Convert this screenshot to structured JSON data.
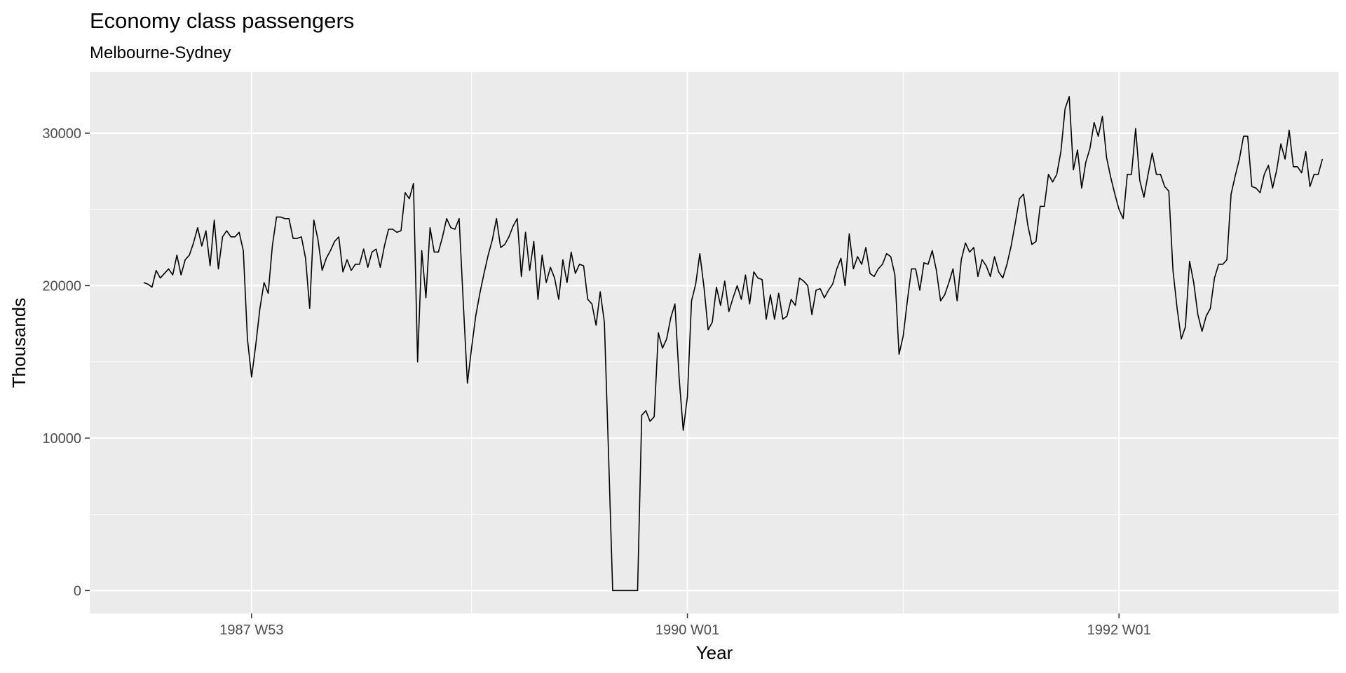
{
  "chart_data": {
    "type": "line",
    "title": "Economy class passengers",
    "subtitle": "Melbourne-Sydney",
    "xlabel": "Year",
    "ylabel": "Thousands",
    "x_unit": "week",
    "x_start": "1987 W27",
    "x_end": "1992 W48",
    "xlim": [
      "1987 W14",
      "1993 W01"
    ],
    "ylim": [
      -1500,
      34000
    ],
    "x_ticks": [
      "1987 W53",
      "1990 W01",
      "1992 W01"
    ],
    "x_minor_ticks": [
      "1989 W01",
      "1991 W01",
      "1993 W01"
    ],
    "y_ticks": [
      0,
      10000,
      20000,
      30000
    ],
    "y_tick_labels": [
      "0",
      "10000",
      "20000",
      "30000"
    ],
    "grid": true,
    "series": [
      {
        "color": "#000000",
        "values": [
          20200,
          20100,
          19900,
          21000,
          20500,
          20800,
          21100,
          20700,
          22000,
          20700,
          21700,
          22000,
          22800,
          23800,
          22600,
          23600,
          21300,
          24300,
          21100,
          23200,
          23600,
          23200,
          23200,
          23500,
          22300,
          16500,
          14000,
          16100,
          18500,
          20200,
          19500,
          22600,
          24500,
          24500,
          24400,
          24400,
          23100,
          23100,
          23200,
          21800,
          18500,
          24300,
          23000,
          21000,
          21800,
          22300,
          22900,
          23200,
          20900,
          21700,
          21000,
          21400,
          21400,
          22400,
          21200,
          22200,
          22400,
          21200,
          22600,
          23700,
          23700,
          23500,
          23600,
          26100,
          25700,
          26700,
          15000,
          22300,
          19200,
          23800,
          22200,
          22200,
          23200,
          24400,
          23800,
          23700,
          24400,
          18900,
          13600,
          15900,
          18000,
          19500,
          20800,
          22000,
          23000,
          24400,
          22500,
          22700,
          23200,
          23900,
          24400,
          20600,
          23500,
          21000,
          22900,
          19100,
          22000,
          20200,
          21200,
          20500,
          19100,
          21700,
          20200,
          22200,
          20800,
          21400,
          21300,
          19100,
          18800,
          17400,
          19600,
          17600,
          9000,
          0,
          0,
          0,
          0,
          0,
          0,
          0,
          11500,
          11800,
          11100,
          11400,
          16900,
          15900,
          16500,
          17900,
          18800,
          14000,
          10500,
          12700,
          19000,
          20100,
          22100,
          19900,
          17100,
          17600,
          19900,
          18700,
          20300,
          18300,
          19200,
          20000,
          19100,
          20700,
          18800,
          20900,
          20500,
          20400,
          17800,
          19400,
          17800,
          19500,
          17800,
          18000,
          19100,
          18700,
          20500,
          20300,
          20000,
          18100,
          19700,
          19800,
          19200,
          19700,
          20100,
          21100,
          21800,
          20000,
          23400,
          21100,
          21900,
          21400,
          22500,
          20800,
          20600,
          21100,
          21400,
          22100,
          21900,
          20700,
          15500,
          16700,
          19000,
          21100,
          21100,
          19700,
          21500,
          21400,
          22300,
          21000,
          19000,
          19400,
          20200,
          21100,
          19000,
          21700,
          22800,
          22200,
          22500,
          20600,
          21700,
          21300,
          20600,
          21900,
          20900,
          20500,
          21400,
          22600,
          24100,
          25700,
          26000,
          24000,
          22700,
          22900,
          25200,
          25200,
          27300,
          26800,
          27300,
          28800,
          31600,
          32400,
          27600,
          28900,
          26400,
          28100,
          29000,
          30700,
          29800,
          31100,
          28400,
          27100,
          26000,
          25000,
          24400,
          27300,
          27300,
          30300,
          26900,
          25800,
          27300,
          28700,
          27300,
          27300,
          26500,
          26200,
          21000,
          18500,
          16500,
          17300,
          21600,
          20200,
          18100,
          17000,
          18000,
          18500,
          20500,
          21400,
          21400,
          21700,
          26000,
          27200,
          28300,
          29800,
          29800,
          26500,
          26400,
          26100,
          27300,
          27900,
          26400,
          27600,
          29300,
          28300,
          30200,
          27800,
          27800,
          27400,
          28800,
          26500,
          27300,
          27300,
          28300
        ]
      }
    ]
  }
}
